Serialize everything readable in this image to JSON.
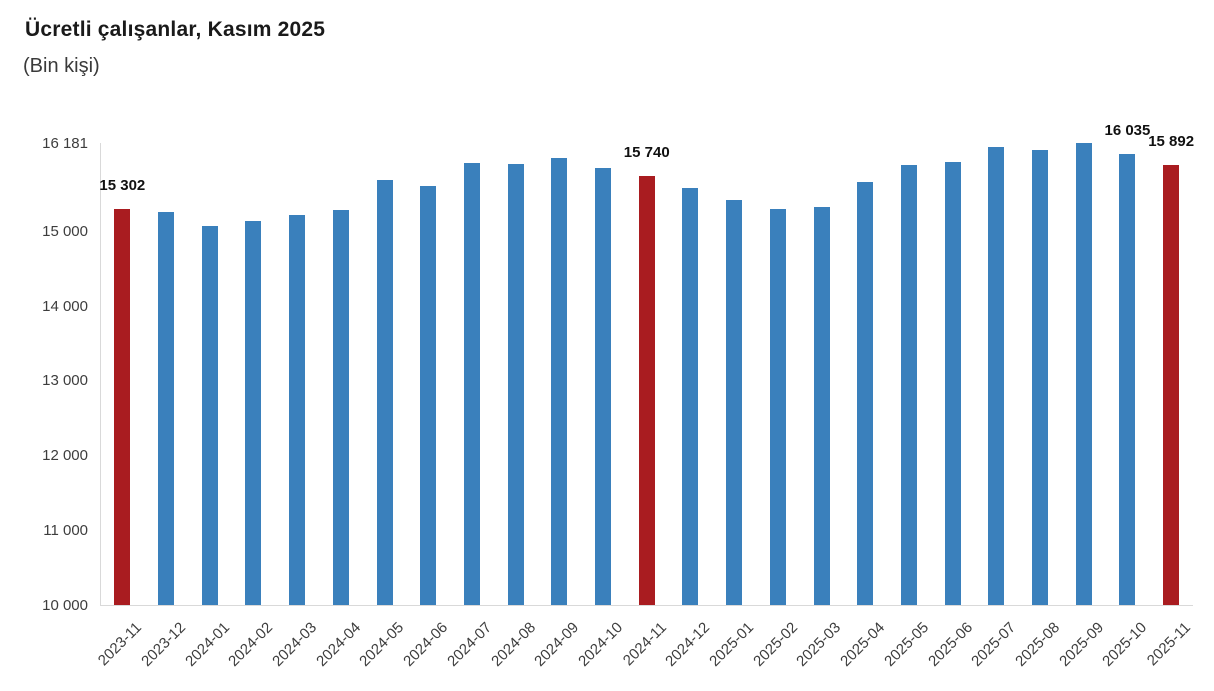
{
  "header": {
    "title": "Ücretli çalışanlar, Kasım 2025",
    "subtitle": "(Bin kişi)"
  },
  "colors": {
    "bar_blue": "#3A80BC",
    "bar_red": "#A91C20",
    "axis_line": "#D9D9D9",
    "tick_text": "#3D3D3D",
    "data_label_text": "#111111",
    "title_text": "#1A1A1A",
    "subtitle_text": "#3A3A3A"
  },
  "chart_data": {
    "type": "bar",
    "title": "Ücretli çalışanlar, Kasım 2025",
    "subtitle": "(Bin kişi)",
    "unit": "Bin kişi",
    "categories": [
      "2023-11",
      "2023-12",
      "2024-01",
      "2024-02",
      "2024-03",
      "2024-04",
      "2024-05",
      "2024-06",
      "2024-07",
      "2024-08",
      "2024-09",
      "2024-10",
      "2024-11",
      "2024-12",
      "2025-01",
      "2025-02",
      "2025-03",
      "2025-04",
      "2025-05",
      "2025-06",
      "2025-07",
      "2025-08",
      "2025-09",
      "2025-10",
      "2025-11"
    ],
    "values": [
      15302,
      15258,
      15075,
      15141,
      15222,
      15289,
      15690,
      15606,
      15914,
      15905,
      15985,
      15851,
      15740,
      15574,
      15413,
      15297,
      15319,
      15659,
      15891,
      15932,
      16125,
      16085,
      16181,
      16035,
      15892
    ],
    "highlighted_categories": [
      "2023-11",
      "2024-11",
      "2025-11"
    ],
    "data_labels": [
      {
        "category": "2023-11",
        "text": "15 302"
      },
      {
        "category": "2024-11",
        "text": "15 740"
      },
      {
        "category": "2025-10",
        "text": "16 035"
      },
      {
        "category": "2025-11",
        "text": "15 892"
      }
    ],
    "ylim": [
      10000,
      16181
    ],
    "yticks": [
      {
        "value": 16181,
        "label": "16 181"
      },
      {
        "value": 15000,
        "label": "15 000"
      },
      {
        "value": 14000,
        "label": "14 000"
      },
      {
        "value": 13000,
        "label": "13 000"
      },
      {
        "value": 12000,
        "label": "12 000"
      },
      {
        "value": 11000,
        "label": "11 000"
      },
      {
        "value": 10000,
        "label": "10 000"
      }
    ],
    "grid": false,
    "legend": false
  }
}
